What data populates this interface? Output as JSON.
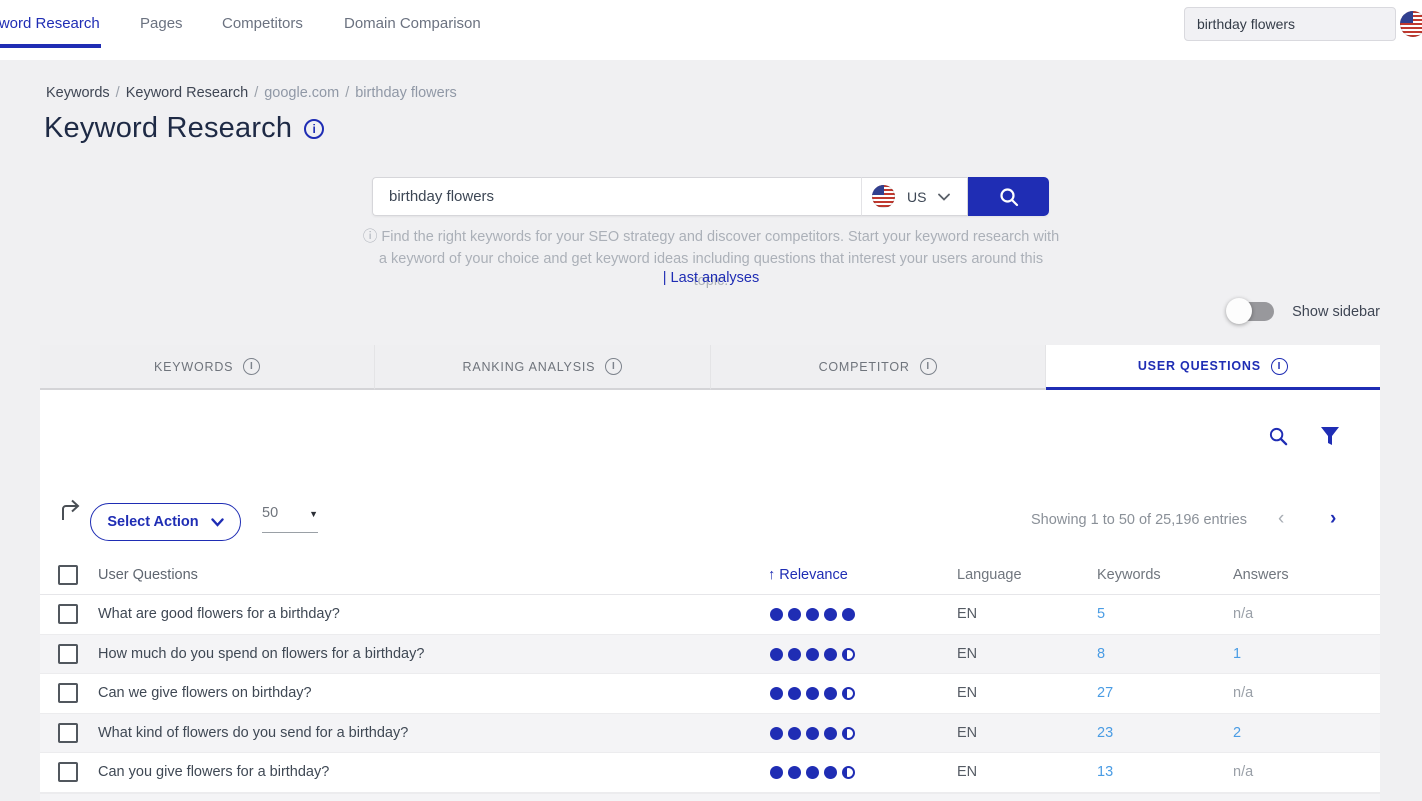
{
  "colors": {
    "accent": "#1f2db4",
    "link_blue": "#4a9ce4"
  },
  "topnav": {
    "items": [
      {
        "label": "Keyword Research",
        "active": true
      },
      {
        "label": "Pages",
        "active": false
      },
      {
        "label": "Competitors",
        "active": false
      },
      {
        "label": "Domain Comparison",
        "active": false
      }
    ],
    "search": {
      "value": "birthday flowers"
    },
    "flag_icon": "us-flag-icon"
  },
  "breadcrumb": {
    "separator": "/",
    "items": [
      "Keywords",
      "Keyword Research",
      "google.com",
      "birthday flowers"
    ]
  },
  "page": {
    "title": "Keyword Research",
    "title_info_icon": "info-icon"
  },
  "search_panel": {
    "input_value": "birthday flowers",
    "country_code": "US",
    "country_flag_icon": "us-flag-icon",
    "search_button_icon": "search-icon",
    "description_info": "ⓘ",
    "description": "Find the right keywords for your SEO strategy and discover competitors. Start your keyword research with a keyword of your choice and get keyword ideas including questions that interest your users around this topic.",
    "last_analyses_label": "| Last analyses"
  },
  "sidebar_toggle": {
    "label": "Show sidebar",
    "enabled": false
  },
  "tabs": [
    {
      "label": "KEYWORDS",
      "active": false
    },
    {
      "label": "RANKING ANALYSIS",
      "active": false
    },
    {
      "label": "COMPETITOR",
      "active": false
    },
    {
      "label": "USER QUESTIONS",
      "active": true
    }
  ],
  "panel_icons": {
    "search": "search-icon",
    "filter": "filter-icon"
  },
  "toolbar": {
    "export_icon": "export-arrow-icon",
    "select_action_label": "Select Action",
    "page_size": "50",
    "showing_text": "Showing 1 to 50 of 25,196 entries",
    "prev_icon": "chevron-left-icon",
    "next_icon": "chevron-right-icon",
    "prev_glyph": "‹",
    "next_glyph": "›"
  },
  "table": {
    "headers": {
      "question": "User Questions",
      "relevance_sort": "↑",
      "relevance": "Relevance",
      "language": "Language",
      "keywords": "Keywords",
      "answers": "Answers"
    },
    "rows": [
      {
        "question": "What are good flowers for a birthday?",
        "relevance_full": 5,
        "relevance_partial": false,
        "language": "EN",
        "keywords": "5",
        "answers": "n/a",
        "answers_is_link": false
      },
      {
        "question": "How much do you spend on flowers for a birthday?",
        "relevance_full": 4,
        "relevance_partial": true,
        "language": "EN",
        "keywords": "8",
        "answers": "1",
        "answers_is_link": true
      },
      {
        "question": "Can we give flowers on birthday?",
        "relevance_full": 4,
        "relevance_partial": true,
        "language": "EN",
        "keywords": "27",
        "answers": "n/a",
        "answers_is_link": false
      },
      {
        "question": "What kind of flowers do you send for a birthday?",
        "relevance_full": 4,
        "relevance_partial": true,
        "language": "EN",
        "keywords": "23",
        "answers": "2",
        "answers_is_link": true
      },
      {
        "question": "Can you give flowers for a birthday?",
        "relevance_full": 4,
        "relevance_partial": true,
        "language": "EN",
        "keywords": "13",
        "answers": "n/a",
        "answers_is_link": false
      }
    ]
  }
}
